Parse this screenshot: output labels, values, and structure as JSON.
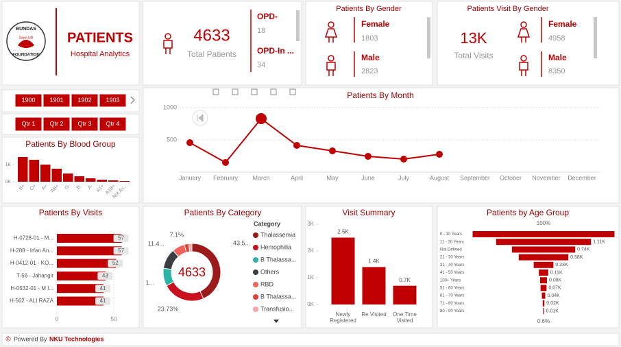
{
  "logo": {
    "name": "BUNDAS",
    "tagline": "Save Life",
    "org": "FOUNDATION"
  },
  "header": {
    "title": "PATIENTS",
    "subtitle": "Hospital Analytics"
  },
  "total_patients": {
    "value": 4633,
    "label": "Total Patients"
  },
  "opd": [
    {
      "label": "OPD-",
      "value": 18
    },
    {
      "label": "OPD-In ...",
      "value": 34
    }
  ],
  "gender": {
    "title": "Patients By Gender",
    "items": [
      {
        "label": "Female",
        "value": 1803
      },
      {
        "label": "Male",
        "value": 2823
      }
    ]
  },
  "visit_gender": {
    "title": "Patients Visit By Gender",
    "total": "13K",
    "total_label": "Total Visits",
    "items": [
      {
        "label": "Female",
        "value": 4958
      },
      {
        "label": "Male",
        "value": 8350
      }
    ]
  },
  "year_slicer": [
    "1900",
    "1901",
    "1902",
    "1903"
  ],
  "quarter_slicer": [
    "Qtr 1",
    "Qtr 2",
    "Qtr 3",
    "Qtr 4"
  ],
  "chart_data": [
    {
      "type": "line",
      "title": "Patients By Month",
      "categories": [
        "January",
        "February",
        "March",
        "April",
        "May",
        "June",
        "July",
        "August",
        "September",
        "October",
        "November",
        "December"
      ],
      "values": [
        457,
        149,
        830,
        415,
        330,
        245,
        202,
        277,
        null,
        null,
        null,
        null
      ],
      "color": "#c00000",
      "ylim": [
        0,
        1000
      ],
      "yticks": [
        500,
        1000
      ],
      "grid": true
    },
    {
      "type": "bar",
      "title": "Patients By Blood Group",
      "categories": [
        "B+",
        "O+",
        "A+",
        "AB+",
        "O-",
        "B-",
        "A-",
        "A1+",
        "A1B+",
        "Not Av..."
      ],
      "values": [
        1440,
        1280,
        1000,
        760,
        480,
        320,
        200,
        120,
        80,
        40
      ],
      "color": "#c00000",
      "ylim": [
        0,
        1500
      ],
      "yticks": [
        {
          "value": 0,
          "label": "0K"
        },
        {
          "value": 1000,
          "label": "1K"
        }
      ]
    },
    {
      "type": "hbar",
      "title": "Patients By Visits",
      "categories": [
        "H-0728-01 - M...",
        "H-288 - Irfan An...",
        "H-0412-01 - KO...",
        "T-56 - Jahangir",
        "H-0532-01 - M I...",
        "H-562 - ALI RAZA"
      ],
      "values": [
        57,
        57,
        52,
        43,
        41,
        41
      ],
      "color": "#c00000",
      "xlim": [
        0,
        70
      ],
      "xticks": [
        0,
        50
      ],
      "grid": true
    },
    {
      "type": "donut",
      "title": "Patients By Category",
      "center_label": 4633,
      "legend_title": "Category",
      "series": [
        {
          "name": "Thalassemia",
          "color": "#9b1b1b",
          "values": [
            43.5
          ]
        },
        {
          "name": "Hemophilia",
          "color": "#c8101e",
          "values": [
            23.73
          ]
        },
        {
          "name": "B Thalassa...",
          "color": "#2ab3a6",
          "values": [
            10
          ]
        },
        {
          "name": "Others",
          "color": "#3b3f44",
          "values": [
            11.4
          ]
        },
        {
          "name": "RBD",
          "color": "#f0625a",
          "values": [
            7.1
          ]
        },
        {
          "name": "B Thalassa...",
          "color": "#e2403a",
          "values": [
            2.5
          ]
        },
        {
          "name": "Transfusio...",
          "color": "#f7a6a6",
          "values": [
            1.77
          ]
        }
      ],
      "value_labels": [
        "43.5...",
        "23.73%",
        "1...",
        "11.4...",
        "7.1%",
        null,
        null
      ]
    },
    {
      "type": "bar",
      "title": "Visit Summary",
      "categories": [
        "Newly Registered",
        "Re Visited",
        "One Time Visited"
      ],
      "values": [
        2500,
        1400,
        700
      ],
      "value_labels": [
        "2.5K",
        "1.4K",
        "0.7K"
      ],
      "color": "#c00000",
      "ylim": [
        0,
        3000
      ],
      "yticks": [
        {
          "value": 0,
          "label": "0K"
        },
        {
          "value": 1000,
          "label": "1K"
        },
        {
          "value": 2000,
          "label": "2K"
        },
        {
          "value": 3000,
          "label": "3K"
        }
      ]
    },
    {
      "type": "funnel",
      "title": "Patients by Age Group",
      "top_label": "100%",
      "bottom_label": "0.6%",
      "categories": [
        "0 - 10 Years",
        "11 - 20 Years",
        "Not Defined",
        "21 - 30 Years",
        "31 - 40 Years",
        "41 - 50 Years",
        "100+ Years",
        "51 - 60 Years",
        "61 - 70 Years",
        "71 - 80 Years",
        "80 - 90 Years"
      ],
      "values": [
        1660,
        1110,
        740,
        580,
        230,
        110,
        80,
        70,
        40,
        20,
        10
      ],
      "value_labels": [
        null,
        "1.11K",
        "0.74K",
        "0.58K",
        "0.23K",
        "0.11K",
        "0.08K",
        "0.07K",
        "0.04K",
        "0.02K",
        "0.01K"
      ],
      "color": "#c00000"
    }
  ],
  "footer": {
    "symbol": "©",
    "prefix": "Powered By",
    "brand": "NKU Technologies"
  }
}
